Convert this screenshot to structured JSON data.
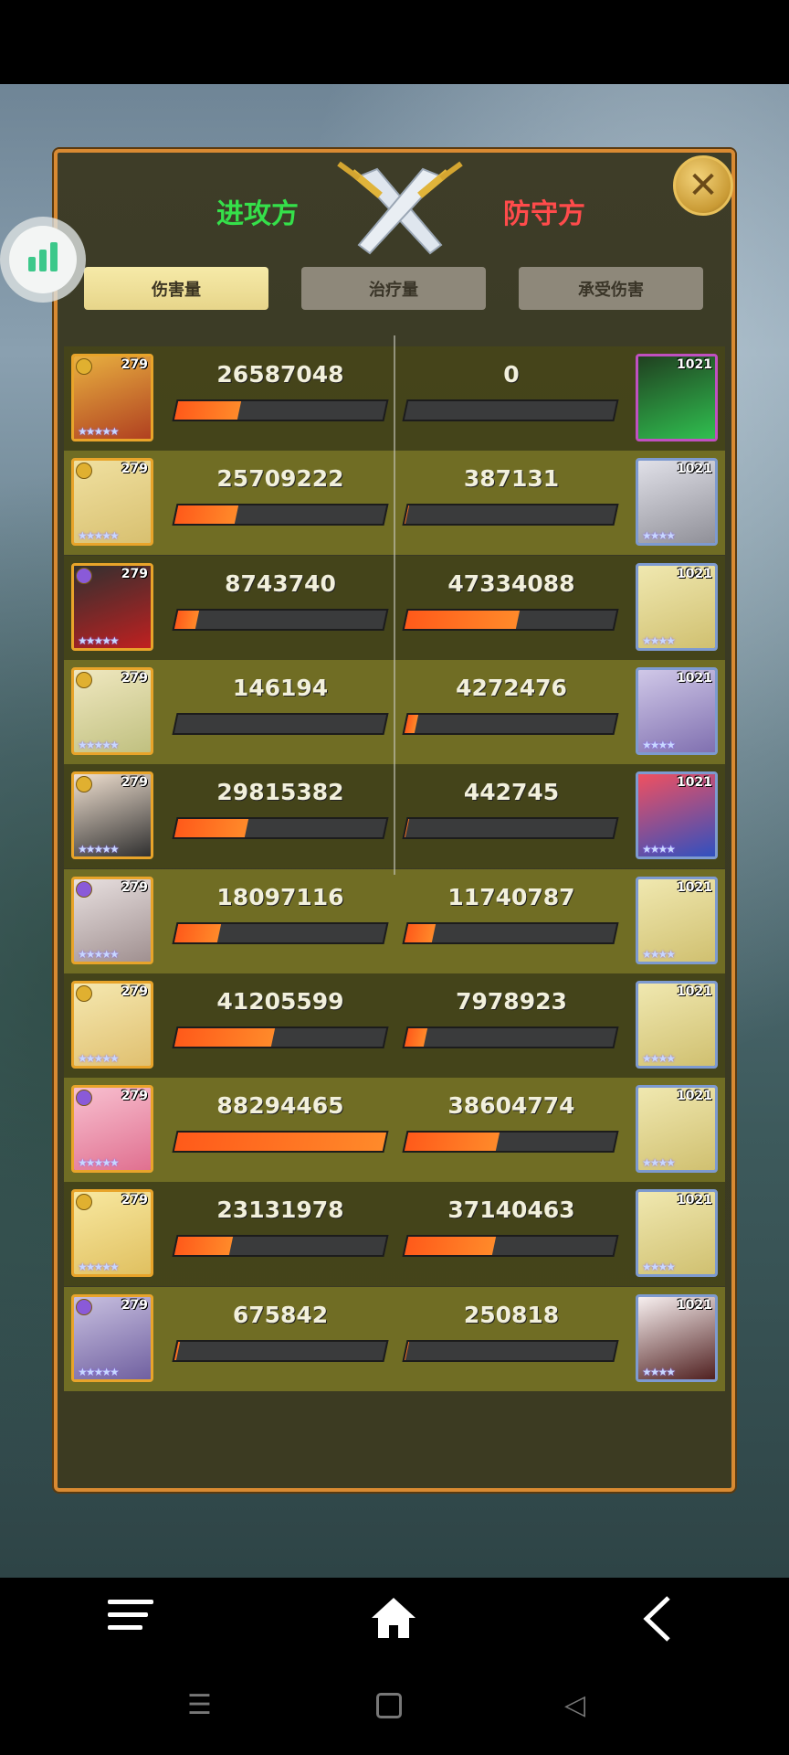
{
  "header": {
    "attacker_label": "进攻方",
    "defender_label": "防守方",
    "close_icon": "close-icon",
    "swords_icon": "crossed-swords-icon"
  },
  "tabs": [
    {
      "label": "伤害量",
      "active": true
    },
    {
      "label": "治疗量",
      "active": false
    },
    {
      "label": "承受伤害",
      "active": false
    }
  ],
  "colors": {
    "attacker": "#35e04a",
    "defender": "#ff4b4b",
    "bar_fill": "#ff6a1f",
    "frame": "#d98a32"
  },
  "rows": [
    {
      "left": {
        "level": "279",
        "value": 26587048
      },
      "right": {
        "level": "1021",
        "value": 0
      }
    },
    {
      "left": {
        "level": "279",
        "value": 25709222
      },
      "right": {
        "level": "1021",
        "value": 387131
      }
    },
    {
      "left": {
        "level": "279",
        "value": 8743740
      },
      "right": {
        "level": "1021",
        "value": 47334088
      }
    },
    {
      "left": {
        "level": "279",
        "value": 146194
      },
      "right": {
        "level": "1021",
        "value": 4272476
      }
    },
    {
      "left": {
        "level": "279",
        "value": 29815382
      },
      "right": {
        "level": "1021",
        "value": 442745
      }
    },
    {
      "left": {
        "level": "279",
        "value": 18097116
      },
      "right": {
        "level": "1021",
        "value": 11740787
      }
    },
    {
      "left": {
        "level": "279",
        "value": 41205599
      },
      "right": {
        "level": "1021",
        "value": 7978923
      }
    },
    {
      "left": {
        "level": "279",
        "value": 88294465
      },
      "right": {
        "level": "1021",
        "value": 38604774
      }
    },
    {
      "left": {
        "level": "279",
        "value": 23131978
      },
      "right": {
        "level": "1021",
        "value": 37140463
      }
    },
    {
      "left": {
        "level": "279",
        "value": 675842
      },
      "right": {
        "level": "1021",
        "value": 250818
      }
    }
  ],
  "nav": {
    "menu_icon": "menu-icon",
    "home_icon": "home-icon",
    "back_icon": "back-icon"
  }
}
